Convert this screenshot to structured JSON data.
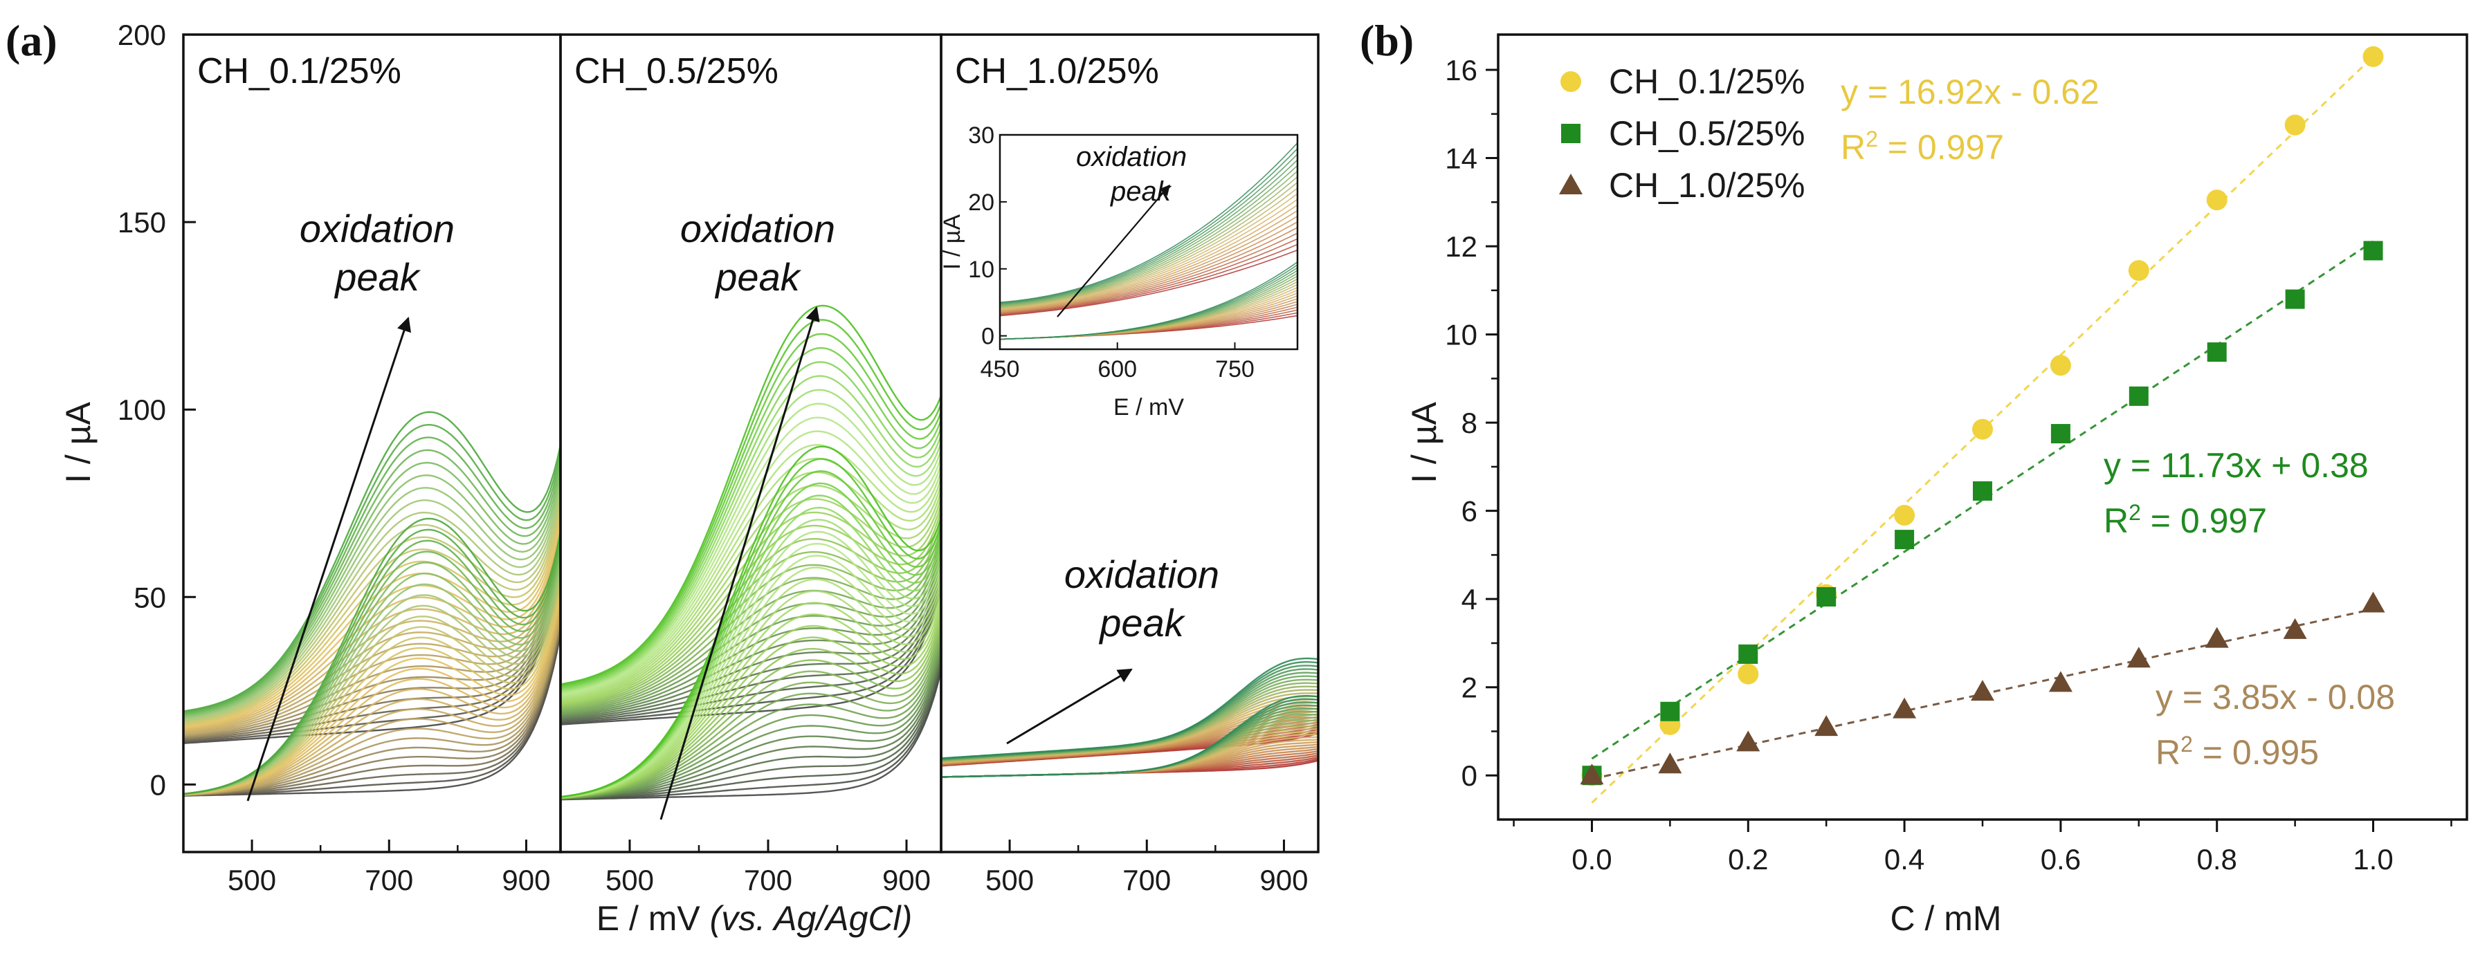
{
  "chart_data": [
    {
      "id": "a",
      "panel_label": "(a)",
      "type": "line",
      "xlabel_main": "E / mV ",
      "xlabel_italic": "(vs. Ag/AgCl)",
      "ylabel": "I / µA",
      "ylim": [
        -18,
        200
      ],
      "yticks": [
        0,
        50,
        100,
        150,
        200
      ],
      "xlim": [
        400,
        950
      ],
      "xticks": [
        500,
        700,
        900
      ],
      "subpanels": [
        {
          "title": "CH_0.1/25%",
          "annotation": [
            "oxidation",
            "peak"
          ],
          "curves": 28,
          "base_start": 3,
          "forward_start": -3,
          "peak_center": 740,
          "peak_width": 160,
          "peak_max": 72,
          "rise_k": 0.024,
          "rise_e": 870,
          "upper_offset": 8,
          "color_stops": [
            "#444444",
            "#b8a060",
            "#e6c160",
            "#9ec878",
            "#4aa83c"
          ]
        },
        {
          "title": "CH_0.5/25%",
          "annotation": [
            "oxidation",
            "peak"
          ],
          "curves": 32,
          "base_start": 6,
          "forward_start": -4,
          "peak_center": 760,
          "peak_width": 170,
          "peak_max": 92,
          "rise_k": 0.024,
          "rise_e": 880,
          "upper_offset": 10,
          "color_stops": [
            "#444444",
            "#6a9a50",
            "#9bd25a",
            "#b8e88a",
            "#4cc020"
          ]
        },
        {
          "title": "CH_1.0/25%",
          "annotation": [
            "oxidation",
            "peak"
          ],
          "curves": 26,
          "base_start": 3,
          "forward_start": 2,
          "peak_center": 900,
          "peak_width": 120,
          "peak_max": 18,
          "rise_k": 0.02,
          "rise_e": 1000,
          "upper_offset": 2,
          "color_stops": [
            "#b03030",
            "#c88a50",
            "#d8b868",
            "#7fb060",
            "#2f8a5a"
          ],
          "inset": {
            "xlim": [
              450,
              830
            ],
            "ylim": [
              -2,
              30
            ],
            "xticks": [
              450,
              600,
              750
            ],
            "yticks": [
              0,
              10,
              20,
              30
            ],
            "xlabel": "E / mV",
            "ylabel": "I / µA",
            "annotation": [
              "oxidation",
              "peak"
            ]
          }
        }
      ]
    },
    {
      "id": "b",
      "panel_label": "(b)",
      "type": "scatter",
      "xlabel": "C / mM",
      "ylabel": "I / µA",
      "xlim": [
        -0.12,
        1.12
      ],
      "ylim": [
        -1,
        16.8
      ],
      "xticks": [
        0.0,
        0.2,
        0.4,
        0.6,
        0.8,
        1.0
      ],
      "xtick_labels": [
        "0.0",
        "0.2",
        "0.4",
        "0.6",
        "0.8",
        "1.0"
      ],
      "yticks": [
        0,
        2,
        4,
        6,
        8,
        10,
        12,
        14,
        16
      ],
      "x": [
        0.0,
        0.1,
        0.2,
        0.3,
        0.4,
        0.5,
        0.6,
        0.7,
        0.8,
        0.9,
        1.0
      ],
      "series": [
        {
          "name": "CH_0.1/25%",
          "marker": "circle",
          "color": "#f0d23c",
          "text_color": "#e8c840",
          "values": [
            0.0,
            1.15,
            2.3,
            4.1,
            5.9,
            7.85,
            9.3,
            11.45,
            13.05,
            14.75,
            16.3
          ],
          "fit_slope": 16.92,
          "fit_intercept": -0.62,
          "equation": "y = 16.92x - 0.62",
          "r2_label": "R",
          "r2_value": " = 0.997"
        },
        {
          "name": "CH_0.5/25%",
          "marker": "square",
          "color": "#1f8a1f",
          "text_color": "#1f8a1f",
          "values": [
            0.0,
            1.45,
            2.75,
            4.05,
            5.35,
            6.45,
            7.75,
            8.6,
            9.6,
            10.8,
            11.9
          ],
          "fit_slope": 11.73,
          "fit_intercept": 0.38,
          "equation": "y = 11.73x + 0.38",
          "r2_label": "R",
          "r2_value": " = 0.997"
        },
        {
          "name": "CH_1.0/25%",
          "marker": "triangle",
          "color": "#6b4a30",
          "text_color": "#a9885a",
          "values": [
            0.0,
            0.25,
            0.75,
            1.1,
            1.5,
            1.9,
            2.1,
            2.65,
            3.1,
            3.3,
            3.9
          ],
          "fit_slope": 3.85,
          "fit_intercept": -0.08,
          "equation": "y = 3.85x - 0.08",
          "r2_label": "R",
          "r2_value": " = 0.995"
        }
      ]
    }
  ]
}
